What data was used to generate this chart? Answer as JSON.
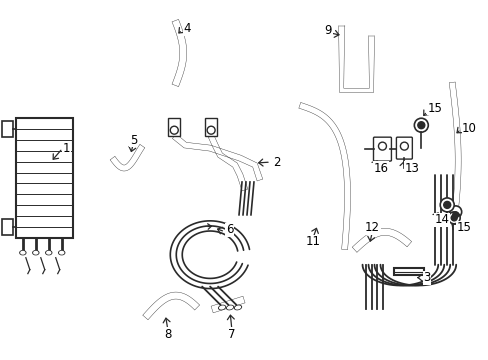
{
  "bg_color": "#ffffff",
  "line_color": "#2a2a2a",
  "text_color": "#000000",
  "figsize": [
    4.89,
    3.6
  ],
  "dpi": 100,
  "font_size": 8.5
}
